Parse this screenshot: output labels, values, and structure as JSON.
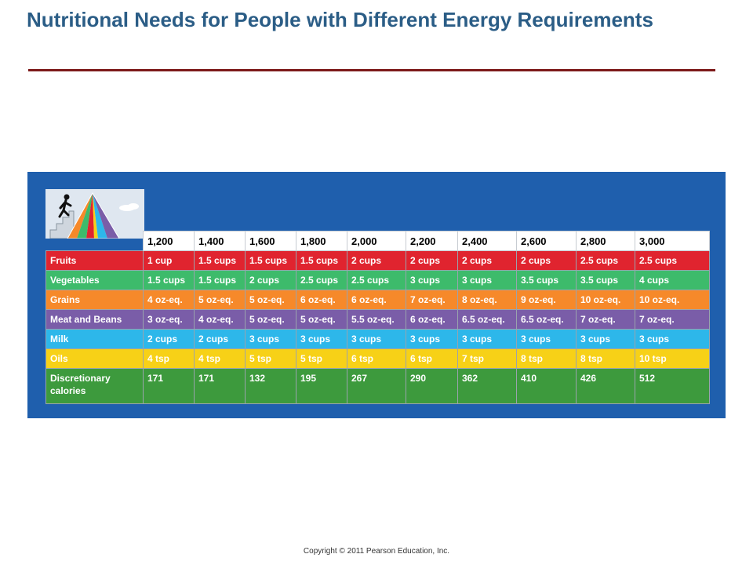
{
  "page": {
    "title": "Nutritional Needs for People with Different Energy Requirements",
    "copyright": "Copyright © 2011 Pearson Education, Inc."
  },
  "table": {
    "headers": [
      "1,200",
      "1,400",
      "1,600",
      "1,800",
      "2,000",
      "2,200",
      "2,400",
      "2,600",
      "2,800",
      "3,000"
    ],
    "rows": [
      {
        "label": "Fruits",
        "color": "#e0242f",
        "values": [
          "1 cup",
          "1.5 cups",
          "1.5 cups",
          "1.5 cups",
          "2 cups",
          "2 cups",
          "2 cups",
          "2 cups",
          "2.5 cups",
          "2.5 cups"
        ]
      },
      {
        "label": "Vegetables",
        "color": "#3dbb6b",
        "values": [
          "1.5 cups",
          "1.5 cups",
          "2 cups",
          "2.5 cups",
          "2.5 cups",
          "3 cups",
          "3 cups",
          "3.5 cups",
          "3.5 cups",
          "4 cups"
        ]
      },
      {
        "label": "Grains",
        "color": "#f6892a",
        "values": [
          "4 oz-eq.",
          "5 oz-eq.",
          "5 oz-eq.",
          "6 oz-eq.",
          "6 oz-eq.",
          "7 oz-eq.",
          "8 oz-eq.",
          "9 oz-eq.",
          "10 oz-eq.",
          "10 oz-eq."
        ]
      },
      {
        "label": "Meat and Beans",
        "color": "#7a5da8",
        "values": [
          "3 oz-eq.",
          "4 oz-eq.",
          "5 oz-eq.",
          "5 oz-eq.",
          "5.5 oz-eq.",
          "6 oz-eq.",
          "6.5 oz-eq.",
          "6.5 oz-eq.",
          "7 oz-eq.",
          "7 oz-eq."
        ]
      },
      {
        "label": "Milk",
        "color": "#2db7ea",
        "values": [
          "2 cups",
          "2 cups",
          "3 cups",
          "3 cups",
          "3 cups",
          "3 cups",
          "3 cups",
          "3 cups",
          "3 cups",
          "3 cups"
        ]
      },
      {
        "label": "Oils",
        "color": "#f7d117",
        "values": [
          "4 tsp",
          "4 tsp",
          "5 tsp",
          "5 tsp",
          "6 tsp",
          "6 tsp",
          "7 tsp",
          "8 tsp",
          "8 tsp",
          "10 tsp"
        ]
      },
      {
        "label": "Discretionary calories",
        "color": "#3d9a3d",
        "values": [
          "171",
          "171",
          "132",
          "195",
          "267",
          "290",
          "362",
          "410",
          "426",
          "512"
        ]
      }
    ]
  },
  "colors": {
    "title": "#2b5d86",
    "rule": "#7d1a1a",
    "panel": "#1f5fad"
  },
  "icons": {
    "pyramid": "food-pyramid-icon",
    "figure": "climbing-person-icon"
  }
}
